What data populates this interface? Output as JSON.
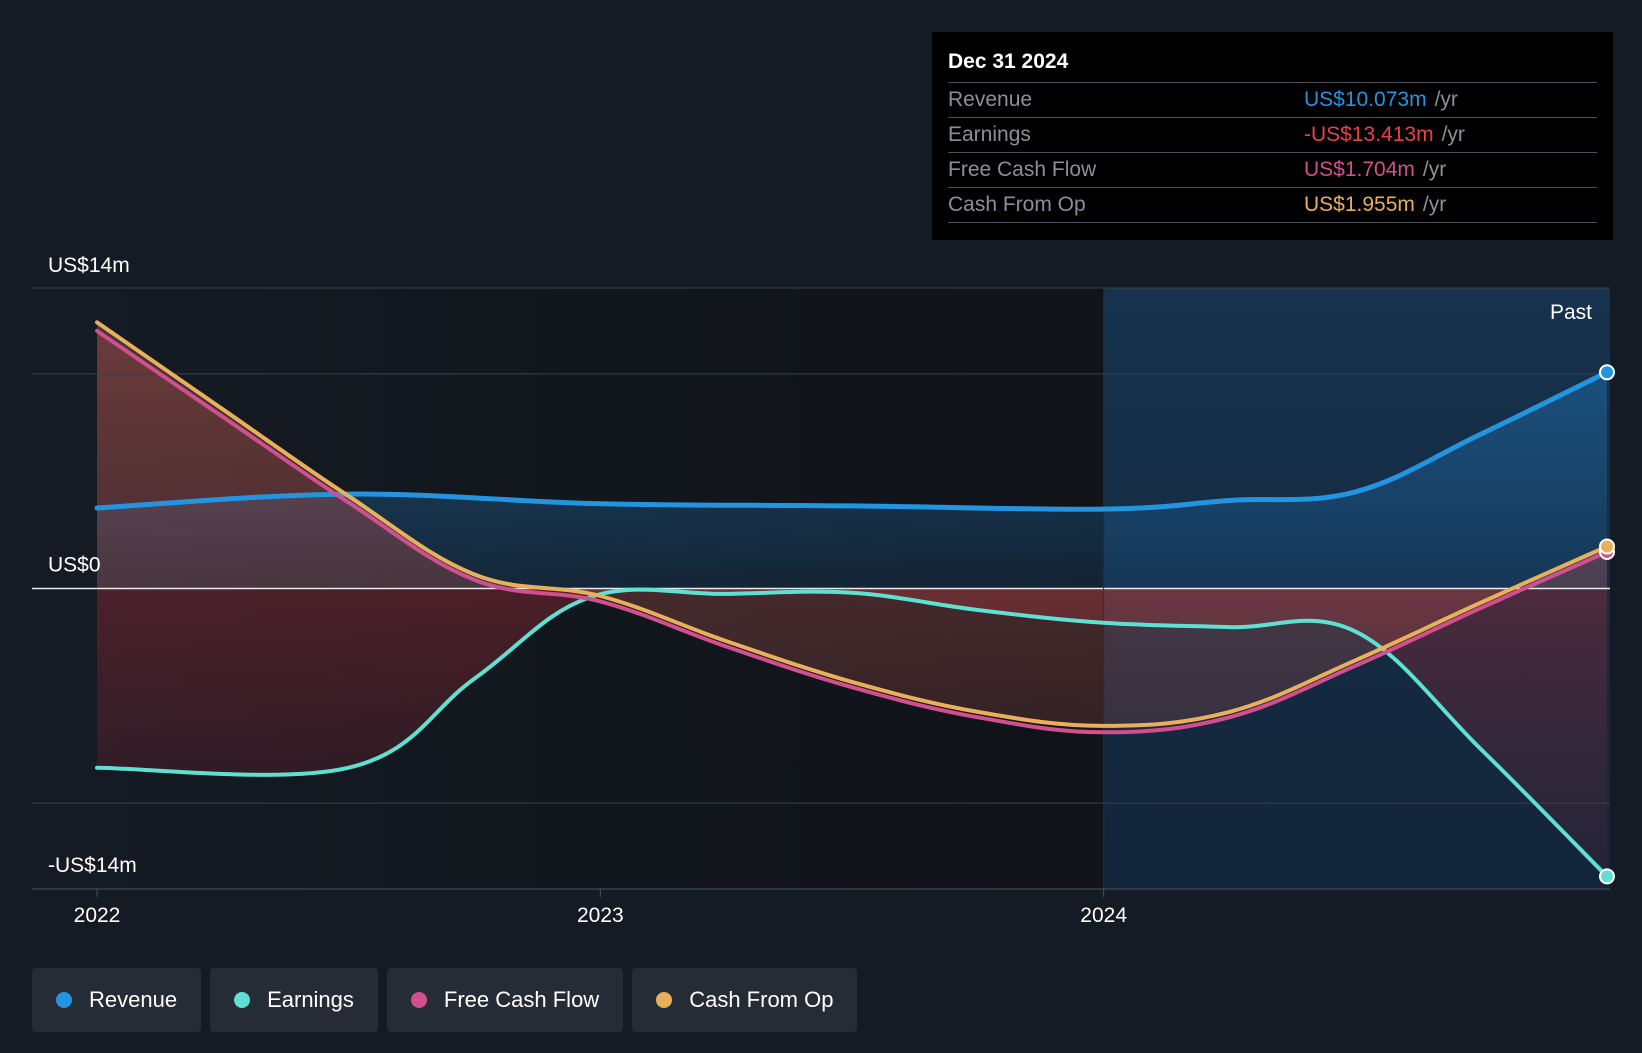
{
  "chart_data": {
    "type": "area",
    "title": "",
    "y_axis": {
      "max_label": "US$14m",
      "zero_label": "US$0",
      "min_label": "-US$14m",
      "ylim": [
        -14,
        14
      ],
      "gridlines": [
        14,
        10,
        0,
        -10,
        -14
      ]
    },
    "x_axis": {
      "ticks": [
        {
          "label": "2022",
          "value": 2022.0
        },
        {
          "label": "2023",
          "value": 2023.0
        },
        {
          "label": "2024",
          "value": 2024.0
        }
      ],
      "xlim": [
        2021.87,
        2025.0
      ]
    },
    "past_label": "Past",
    "past_region_start": 2024.0,
    "series": [
      {
        "name": "Revenue",
        "color": "#2394df",
        "points": [
          [
            2022.0,
            3.75
          ],
          [
            2022.5,
            4.4
          ],
          [
            2023.0,
            3.95
          ],
          [
            2023.5,
            3.85
          ],
          [
            2024.0,
            3.7
          ],
          [
            2024.25,
            4.1
          ],
          [
            2024.5,
            4.5
          ],
          [
            2024.75,
            7.2
          ],
          [
            2025.0,
            10.073
          ]
        ]
      },
      {
        "name": "Earnings",
        "color": "#5ee0d2",
        "points": [
          [
            2022.0,
            -8.35
          ],
          [
            2022.5,
            -8.35
          ],
          [
            2022.75,
            -4.2
          ],
          [
            2022.98,
            -0.4
          ],
          [
            2023.25,
            -0.25
          ],
          [
            2023.5,
            -0.2
          ],
          [
            2023.75,
            -1.0
          ],
          [
            2024.0,
            -1.6
          ],
          [
            2024.25,
            -1.8
          ],
          [
            2024.5,
            -2.0
          ],
          [
            2024.75,
            -7.5
          ],
          [
            2025.0,
            -13.413
          ]
        ]
      },
      {
        "name": "Free Cash Flow",
        "color": "#d14f8e",
        "points": [
          [
            2022.0,
            12.0
          ],
          [
            2022.25,
            8.0
          ],
          [
            2022.5,
            4.0
          ],
          [
            2022.75,
            0.4
          ],
          [
            2023.0,
            -0.6
          ],
          [
            2023.25,
            -2.7
          ],
          [
            2023.5,
            -4.6
          ],
          [
            2023.75,
            -6.0
          ],
          [
            2024.0,
            -6.7
          ],
          [
            2024.25,
            -6.0
          ],
          [
            2024.5,
            -3.6
          ],
          [
            2024.75,
            -0.9
          ],
          [
            2025.0,
            1.704
          ]
        ]
      },
      {
        "name": "Cash From Op",
        "color": "#e8b05a",
        "points": [
          [
            2022.0,
            12.4
          ],
          [
            2022.25,
            8.35
          ],
          [
            2022.5,
            4.3
          ],
          [
            2022.75,
            0.65
          ],
          [
            2023.0,
            -0.35
          ],
          [
            2023.25,
            -2.45
          ],
          [
            2023.5,
            -4.35
          ],
          [
            2023.75,
            -5.75
          ],
          [
            2024.0,
            -6.4
          ],
          [
            2024.25,
            -5.75
          ],
          [
            2024.5,
            -3.35
          ],
          [
            2024.75,
            -0.65
          ],
          [
            2025.0,
            1.955
          ]
        ]
      }
    ]
  },
  "tooltip": {
    "date": "Dec 31 2024",
    "unit": "/yr",
    "rows": [
      {
        "label": "Revenue",
        "value": "US$10.073m",
        "color": "#2394df"
      },
      {
        "label": "Earnings",
        "value": "-US$13.413m",
        "color": "#e8404a"
      },
      {
        "label": "Free Cash Flow",
        "value": "US$1.704m",
        "color": "#d14f8e"
      },
      {
        "label": "Cash From Op",
        "value": "US$1.955m",
        "color": "#e8b05a"
      }
    ]
  },
  "legend": [
    {
      "label": "Revenue",
      "color": "#2394df"
    },
    {
      "label": "Earnings",
      "color": "#5ee0d2"
    },
    {
      "label": "Free Cash Flow",
      "color": "#d14f8e"
    },
    {
      "label": "Cash From Op",
      "color": "#e8b05a"
    }
  ]
}
